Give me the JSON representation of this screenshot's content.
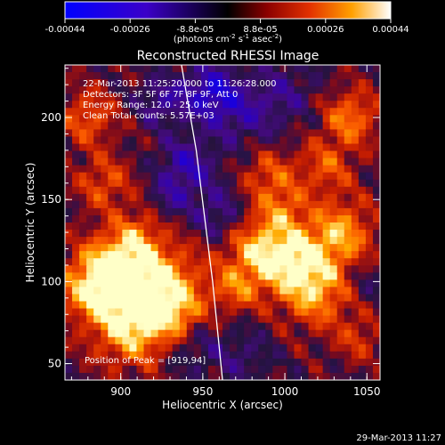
{
  "chart_data": {
    "type": "heatmap",
    "title": "Reconstructed RHESSI Image",
    "xlabel": "Heliocentric X (arcsec)",
    "ylabel": "Heliocentric Y (arcsec)",
    "xlim": [
      866,
      1058
    ],
    "ylim": [
      40,
      232
    ],
    "xticks": [
      900,
      950,
      1000,
      1050
    ],
    "yticks": [
      50,
      100,
      150,
      200
    ],
    "colorbar": {
      "ticks": [
        "-0.00044",
        "-0.00026",
        "-8.8e-05",
        "8.8e-05",
        "0.00026",
        "0.00044"
      ],
      "label": "(photons cm",
      "label_exp1": "-2",
      "label_mid": " s",
      "label_exp2": "-1",
      "label_mid2": " asec",
      "label_exp3": "-2",
      "label_end": ")",
      "range": [
        -0.00044,
        0.00044
      ]
    },
    "info_lines": [
      "22-Mar-2013 11:25:20.000 to 11:26:28.000",
      "Detectors: 3F 5F 6F 7F 8F 9F, Att 0",
      "Energy Range: 12.0 - 25.0 keV",
      "Clean     Total counts: 5.57E+03"
    ],
    "peak_label": "Position of Peak = [919,94]",
    "peak": [
      919,
      94
    ],
    "limb_curve": [
      [
        937,
        232
      ],
      [
        946,
        180
      ],
      [
        951,
        140
      ],
      [
        956,
        100
      ],
      [
        960,
        60
      ],
      [
        962,
        40
      ]
    ],
    "hot_spots": [
      [
        920,
        95,
        20,
        1.0
      ],
      [
        895,
        110,
        14,
        0.7
      ],
      [
        880,
        95,
        14,
        0.6
      ],
      [
        905,
        70,
        16,
        0.6
      ],
      [
        880,
        200,
        12,
        0.5
      ],
      [
        890,
        160,
        12,
        0.45
      ],
      [
        910,
        130,
        10,
        0.35
      ],
      [
        935,
        80,
        10,
        0.35
      ],
      [
        985,
        120,
        16,
        0.75
      ],
      [
        1010,
        110,
        16,
        0.7
      ],
      [
        1035,
        130,
        14,
        0.65
      ],
      [
        1040,
        200,
        12,
        0.6
      ],
      [
        1020,
        90,
        14,
        0.5
      ],
      [
        990,
        165,
        12,
        0.45
      ],
      [
        1025,
        170,
        12,
        0.45
      ],
      [
        1045,
        65,
        10,
        0.35
      ],
      [
        970,
        95,
        10,
        0.4
      ],
      [
        1000,
        145,
        10,
        0.35
      ]
    ],
    "cold_spots": [
      [
        955,
        215,
        12,
        0.7
      ],
      [
        925,
        210,
        10,
        0.45
      ],
      [
        940,
        170,
        12,
        0.55
      ],
      [
        960,
        140,
        12,
        0.45
      ],
      [
        975,
        200,
        14,
        0.35
      ],
      [
        1000,
        215,
        14,
        0.3
      ],
      [
        945,
        60,
        12,
        0.3
      ],
      [
        975,
        55,
        12,
        0.25
      ],
      [
        930,
        150,
        8,
        0.3
      ],
      [
        1050,
        100,
        8,
        0.2
      ]
    ]
  },
  "footer": {
    "timestamp": "29-Mar-2013 11:27"
  }
}
